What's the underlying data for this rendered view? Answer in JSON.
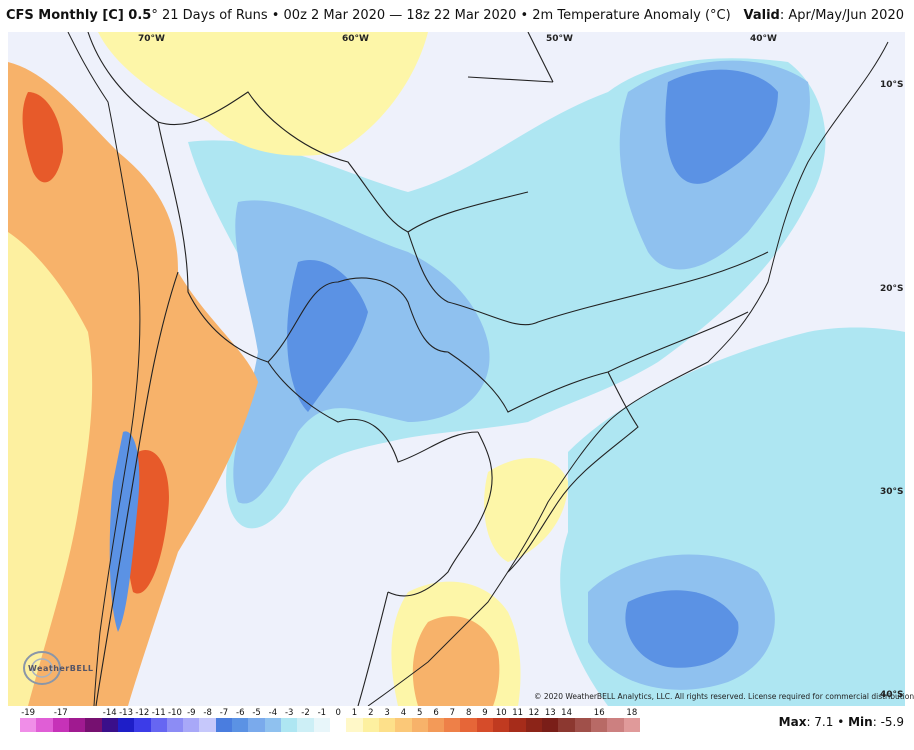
{
  "header": {
    "title_bold": "CFS Monthly [C] 0.5",
    "title_rest": "° 21 Days of Runs • 00z 2 Mar 2020 — 18z 22 Mar 2020 • 2m Temperature Anomaly (°C)",
    "valid_label": "Valid",
    "valid_value": ": Apr/May/Jun 2020"
  },
  "map": {
    "longitudes": [
      "70°W",
      "60°W",
      "50°W",
      "40°W"
    ],
    "latitudes": [
      "10°S",
      "20°S",
      "30°S",
      "40°S"
    ],
    "copyright": "© 2020 WeatherBELL Analytics, LLC. All rights reserved. License required for commercial distribution.",
    "logo_text": "WeatherBELL",
    "colors": {
      "background": "#eef1fb",
      "light_blue": "#aee6f2",
      "blue": "#8fc1ef",
      "deep_blue": "#5b92e4",
      "yellow": "#fdf6a8",
      "orange": "#f7b26a",
      "red": "#e75a2a",
      "border": "#222222"
    }
  },
  "legend": {
    "ticks": [
      "-19",
      "-18",
      "-17",
      "-16",
      "-15",
      "-14",
      "-13",
      "-12",
      "-11",
      "-10",
      "-9",
      "-8",
      "-7",
      "-6",
      "-5",
      "-4",
      "-3",
      "-2",
      "-1",
      "0",
      "1",
      "2",
      "3",
      "4",
      "5",
      "6",
      "7",
      "8",
      "9",
      "10",
      "11",
      "12",
      "13",
      "14",
      "15",
      "16",
      "17",
      "18"
    ],
    "tick_labels": [
      "-19",
      "-17",
      "-14",
      "-13",
      "-12",
      "-11",
      "-10",
      "-9",
      "-8",
      "-7",
      "-6",
      "-5",
      "-4",
      "-3",
      "-2",
      "-1",
      "0",
      "1",
      "2",
      "3",
      "4",
      "5",
      "6",
      "7",
      "8",
      "9",
      "10",
      "11",
      "12",
      "13",
      "14",
      "16",
      "18"
    ],
    "colors": [
      "#f08ee8",
      "#e05ed6",
      "#c632b8",
      "#a01a90",
      "#761070",
      "#3a0f8a",
      "#1e1ec8",
      "#3c3ce8",
      "#6666f2",
      "#8c8cf5",
      "#a8a8f8",
      "#c6c8fb",
      "#4a7ddf",
      "#5b92e4",
      "#7aaaec",
      "#8fc1ef",
      "#aee6f2",
      "#cdeff6",
      "#e8f6fa",
      "#ffffff",
      "#fff8c8",
      "#fdf0a0",
      "#fde08a",
      "#fbc878",
      "#f7b26a",
      "#f39a58",
      "#ee8048",
      "#e66638",
      "#d64c2a",
      "#c03a20",
      "#a62c1a",
      "#8c2418",
      "#7a1e18",
      "#8c3830",
      "#a0504a",
      "#b86a66",
      "#cc8080",
      "#e09a9a"
    ],
    "max_label": "Max",
    "max_value": ": 7.1 •",
    "min_label": "Min",
    "min_value": ": -5.9"
  }
}
